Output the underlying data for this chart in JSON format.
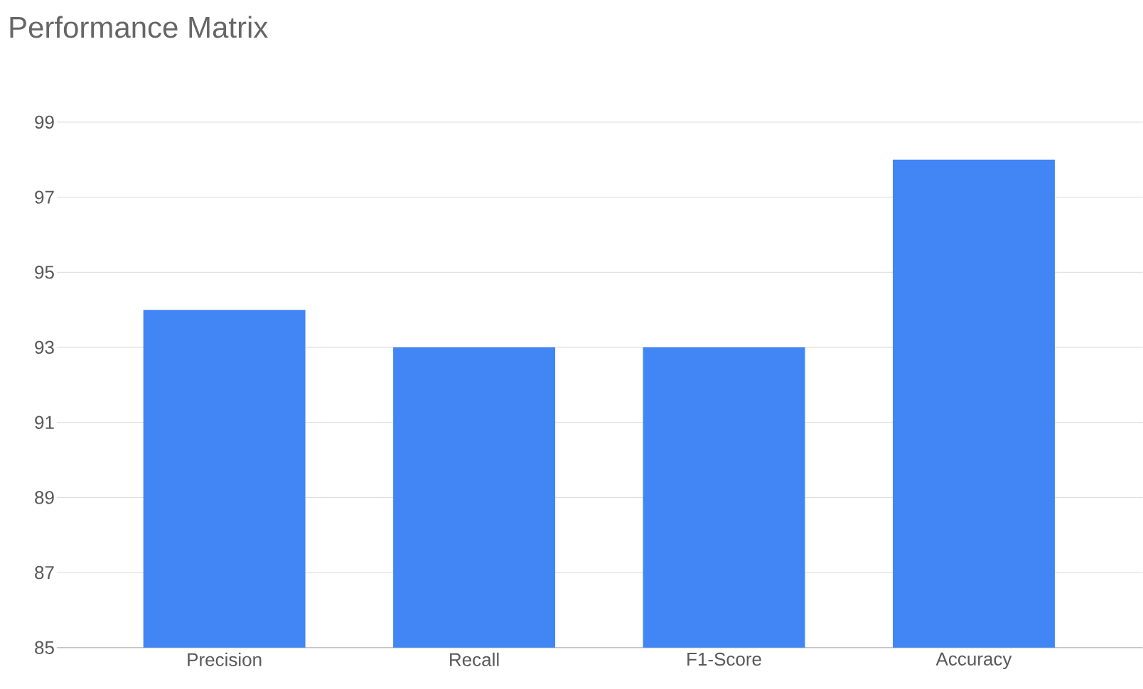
{
  "chart_data": {
    "type": "bar",
    "title": "Performance Matrix",
    "categories": [
      "Precision",
      "Recall",
      "F1-Score",
      "Accuracy"
    ],
    "values": [
      94,
      93,
      93,
      98
    ],
    "color": "#4285f4",
    "ylim": [
      85,
      99
    ],
    "yticks": [
      85,
      87,
      89,
      91,
      93,
      95,
      97,
      99
    ],
    "grid": "y"
  }
}
